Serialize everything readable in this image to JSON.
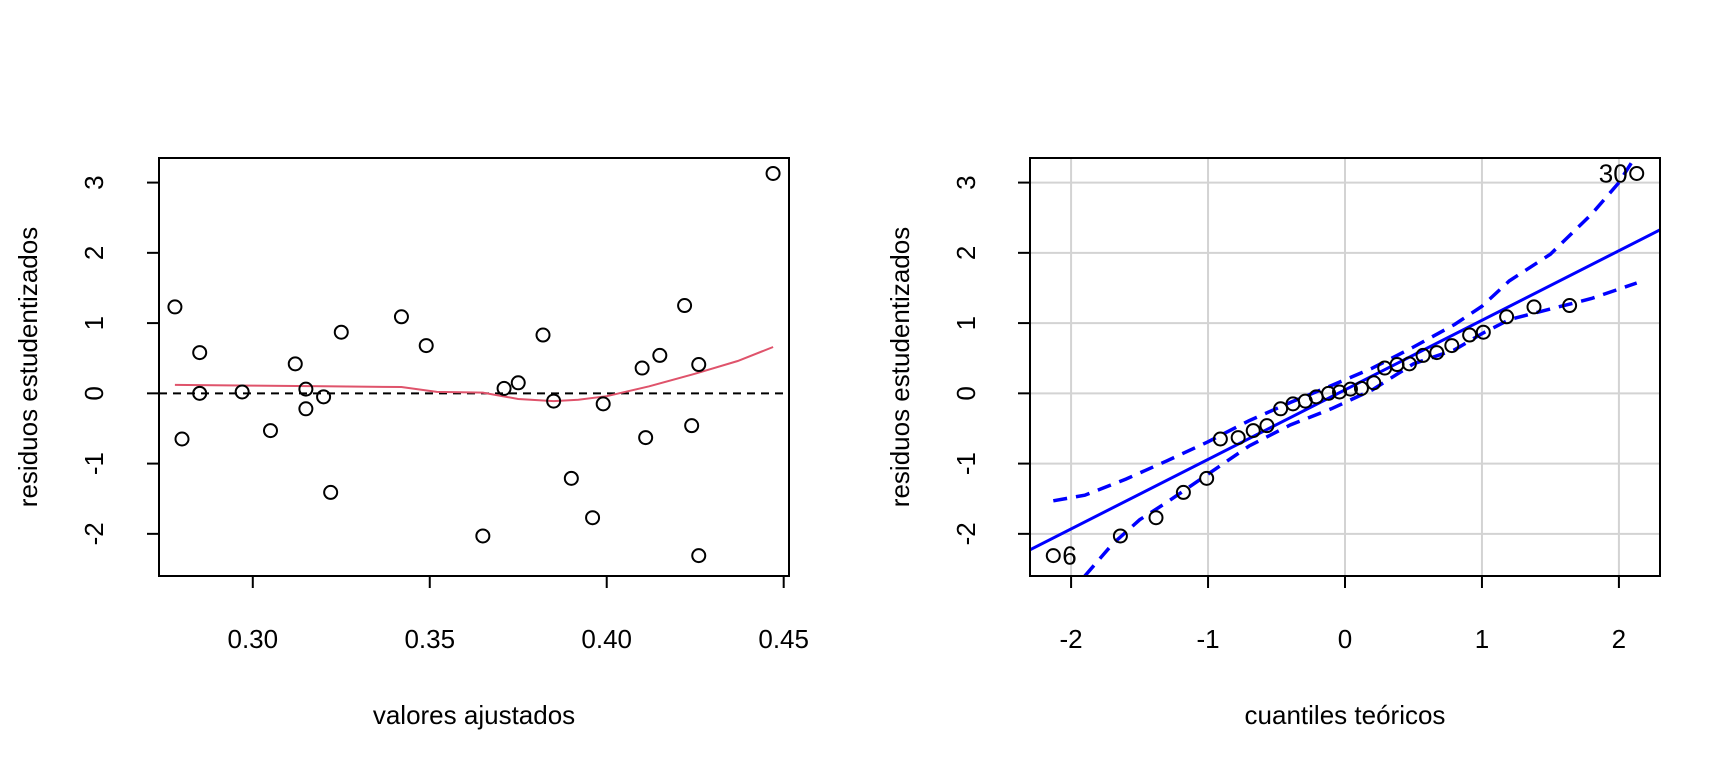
{
  "chart_data": [
    {
      "type": "scatter",
      "title": "",
      "xlabel": "valores ajustados",
      "ylabel": "residuos estudentizados",
      "xlim": [
        0.2735,
        0.4515
      ],
      "ylim": [
        -2.6,
        3.35
      ],
      "xticks": [
        0.3,
        0.35,
        0.4,
        0.45
      ],
      "xtick_labels": [
        "0.30",
        "0.35",
        "0.40",
        "0.45"
      ],
      "yticks": [
        -2,
        -1,
        0,
        1,
        2,
        3
      ],
      "ytick_labels": [
        "-2",
        "-1",
        "0",
        "1",
        "2",
        "3"
      ],
      "grid": false,
      "points": {
        "x": [
          0.278,
          0.28,
          0.285,
          0.285,
          0.297,
          0.305,
          0.312,
          0.315,
          0.315,
          0.32,
          0.322,
          0.325,
          0.342,
          0.349,
          0.365,
          0.371,
          0.375,
          0.382,
          0.385,
          0.39,
          0.396,
          0.399,
          0.41,
          0.411,
          0.415,
          0.422,
          0.424,
          0.426,
          0.426,
          0.447
        ],
        "y": [
          1.23,
          -0.65,
          0.58,
          0.0,
          0.02,
          -0.53,
          0.42,
          0.06,
          -0.22,
          -0.05,
          -1.41,
          0.87,
          1.09,
          0.68,
          -2.03,
          0.07,
          0.15,
          0.83,
          -0.11,
          -1.21,
          -1.77,
          -0.15,
          0.36,
          -0.63,
          0.54,
          1.25,
          -0.46,
          0.41,
          -2.31,
          3.13
        ]
      },
      "smooth_line": {
        "color": "#DF536B",
        "x": [
          0.278,
          0.3,
          0.32,
          0.342,
          0.352,
          0.365,
          0.375,
          0.385,
          0.392,
          0.4,
          0.412,
          0.425,
          0.437,
          0.447
        ],
        "y": [
          0.12,
          0.11,
          0.1,
          0.09,
          0.02,
          0.01,
          -0.08,
          -0.11,
          -0.09,
          -0.04,
          0.1,
          0.28,
          0.46,
          0.66
        ]
      },
      "reference_line": {
        "y": 0,
        "style": "dashed",
        "color": "#000000"
      }
    },
    {
      "type": "scatter",
      "title": "",
      "xlabel": "cuantiles teóricos",
      "ylabel": "residuos estudentizados",
      "xlim": [
        -2.3,
        2.3
      ],
      "ylim": [
        -2.6,
        3.35
      ],
      "xticks": [
        -2,
        -1,
        0,
        1,
        2
      ],
      "xtick_labels": [
        "-2",
        "-1",
        "0",
        "1",
        "2"
      ],
      "yticks": [
        -2,
        -1,
        0,
        1,
        2,
        3
      ],
      "ytick_labels": [
        "-2",
        "-1",
        "0",
        "1",
        "2",
        "3"
      ],
      "grid": true,
      "points": {
        "x": [
          -2.13,
          -1.64,
          -1.38,
          -1.18,
          -1.01,
          -0.91,
          -0.78,
          -0.67,
          -0.57,
          -0.47,
          -0.38,
          -0.29,
          -0.21,
          -0.12,
          -0.04,
          0.04,
          0.12,
          0.21,
          0.29,
          0.38,
          0.47,
          0.57,
          0.67,
          0.78,
          0.91,
          1.01,
          1.18,
          1.38,
          1.64,
          2.13
        ],
        "y": [
          -2.31,
          -2.03,
          -1.77,
          -1.41,
          -1.21,
          -0.65,
          -0.63,
          -0.53,
          -0.46,
          -0.22,
          -0.15,
          -0.11,
          -0.05,
          0.0,
          0.02,
          0.06,
          0.07,
          0.15,
          0.36,
          0.41,
          0.42,
          0.54,
          0.58,
          0.68,
          0.83,
          0.87,
          1.09,
          1.23,
          1.25,
          3.13
        ]
      },
      "point_labels": [
        {
          "text": "6",
          "x": -2.13,
          "y": -2.31,
          "side": "right"
        },
        {
          "text": "30",
          "x": 2.13,
          "y": 3.13,
          "side": "left"
        }
      ],
      "reference_line": {
        "intercept": 0.05,
        "slope": 0.99,
        "color": "#0000FF",
        "style": "solid"
      },
      "envelope": {
        "color": "#0000FF",
        "style": "dashed",
        "upper": {
          "x": [
            -2.13,
            -1.9,
            -1.6,
            -1.3,
            -1.0,
            -0.7,
            -0.4,
            -0.1,
            0.2,
            0.5,
            0.8,
            1.0,
            1.2,
            1.5,
            1.8,
            2.0,
            2.13
          ],
          "y": [
            -1.53,
            -1.45,
            -1.22,
            -0.96,
            -0.69,
            -0.39,
            -0.13,
            0.11,
            0.36,
            0.66,
            0.98,
            1.24,
            1.6,
            1.98,
            2.55,
            3.0,
            3.4
          ]
        },
        "lower": {
          "x": [
            -1.9,
            -1.7,
            -1.5,
            -1.3,
            -1.0,
            -0.7,
            -0.4,
            -0.1,
            0.2,
            0.5,
            0.8,
            1.0,
            1.2,
            1.5,
            1.8,
            2.13
          ],
          "y": [
            -2.6,
            -2.15,
            -1.8,
            -1.55,
            -1.15,
            -0.75,
            -0.45,
            -0.22,
            0.05,
            0.42,
            0.62,
            0.85,
            1.05,
            1.2,
            1.35,
            1.57
          ]
        }
      }
    }
  ]
}
